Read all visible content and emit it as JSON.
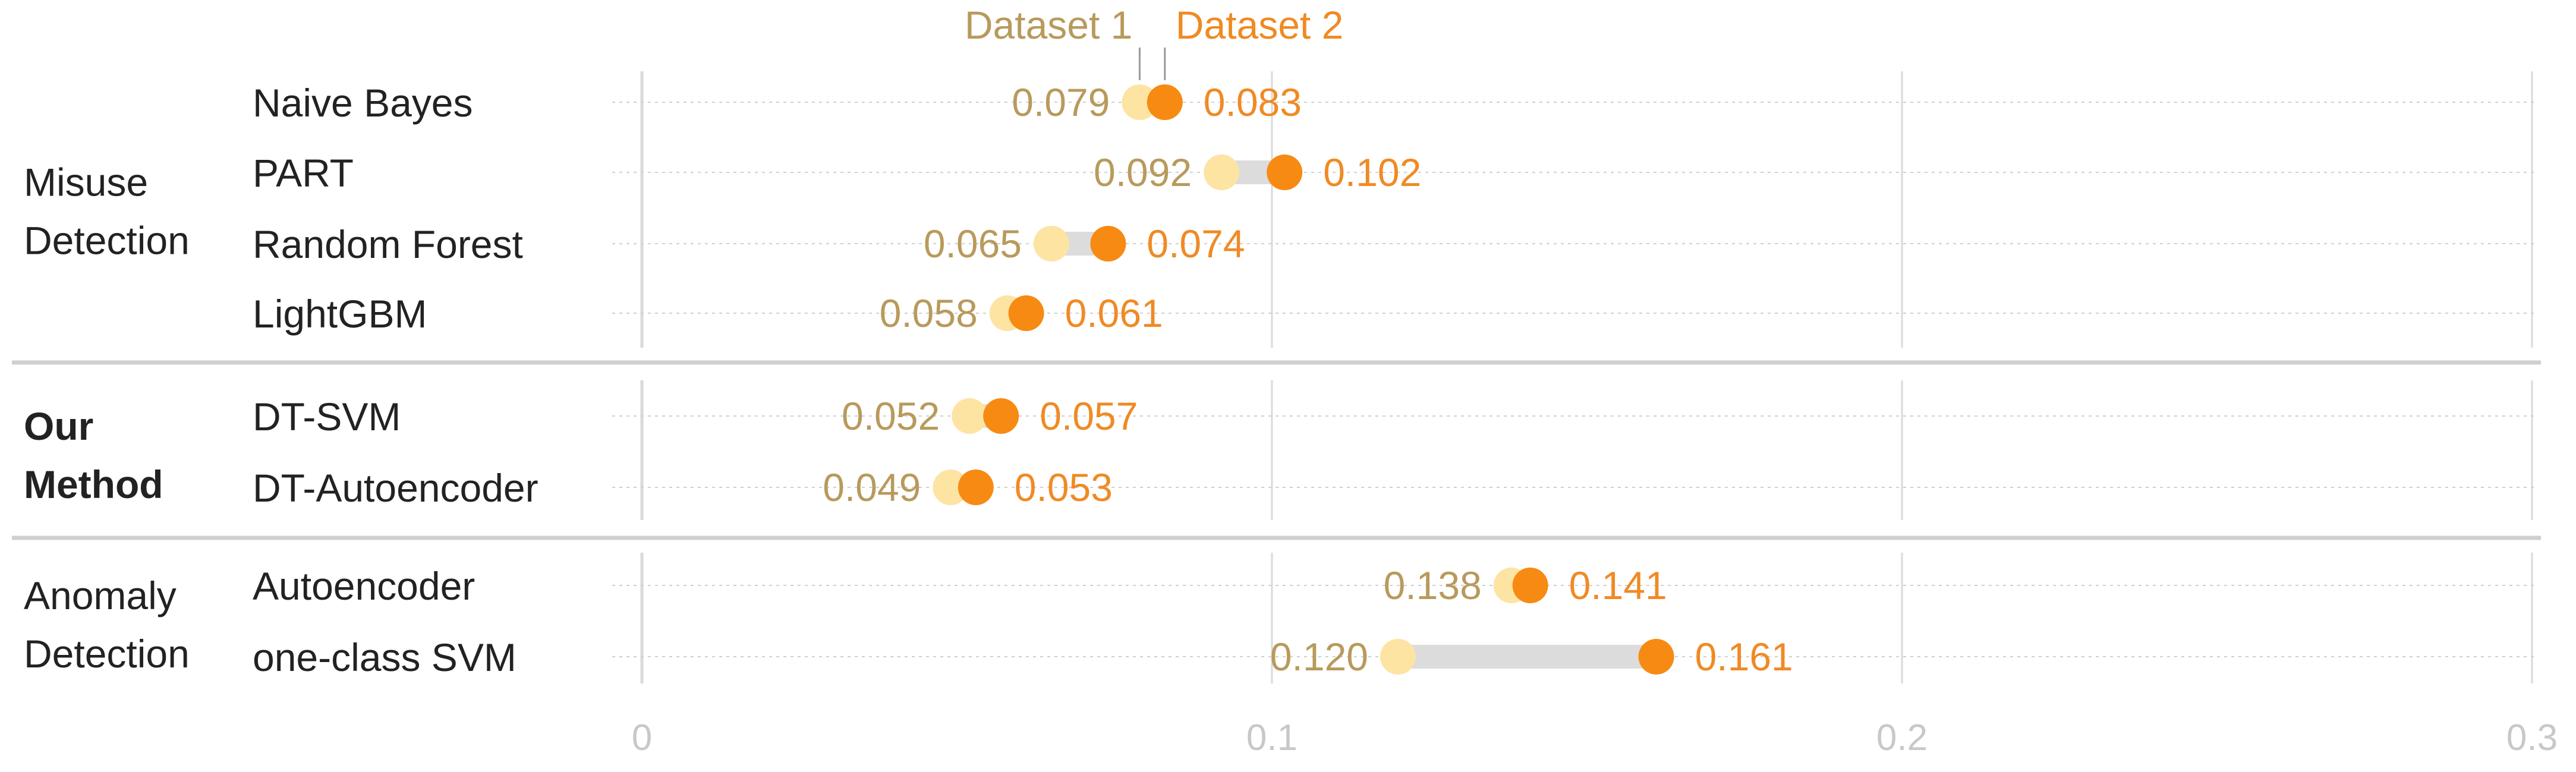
{
  "chart_data": {
    "type": "dumbbell",
    "legend": [
      "Dataset 1",
      "Dataset 2"
    ],
    "xlim": [
      0,
      0.3
    ],
    "xticks": [
      "0",
      "0.1",
      "0.2",
      "0.3"
    ],
    "tick_values": [
      0,
      0.1,
      0.2,
      0.3
    ],
    "groups": [
      {
        "label_lines": [
          "Misuse",
          "Detection"
        ],
        "bold": false,
        "rows": [
          {
            "name": "Naive Bayes",
            "d1": 0.079,
            "d2": 0.083,
            "d1_label": "0.079",
            "d2_label": "0.083"
          },
          {
            "name": "PART",
            "d1": 0.092,
            "d2": 0.102,
            "d1_label": "0.092",
            "d2_label": "0.102"
          },
          {
            "name": "Random Forest",
            "d1": 0.065,
            "d2": 0.074,
            "d1_label": "0.065",
            "d2_label": "0.074"
          },
          {
            "name": "LightGBM",
            "d1": 0.058,
            "d2": 0.061,
            "d1_label": "0.058",
            "d2_label": "0.061"
          }
        ]
      },
      {
        "label_lines": [
          "Our",
          "Method"
        ],
        "bold": true,
        "rows": [
          {
            "name": "DT-SVM",
            "d1": 0.052,
            "d2": 0.057,
            "d1_label": "0.052",
            "d2_label": "0.057"
          },
          {
            "name": "DT-Autoencoder",
            "d1": 0.049,
            "d2": 0.053,
            "d1_label": "0.049",
            "d2_label": "0.053"
          }
        ]
      },
      {
        "label_lines": [
          "Anomaly",
          "Detection"
        ],
        "bold": false,
        "rows": [
          {
            "name": "Autoencoder",
            "d1": 0.138,
            "d2": 0.141,
            "d1_label": "0.138",
            "d2_label": "0.141"
          },
          {
            "name": "one-class SVM",
            "d1": 0.12,
            "d2": 0.161,
            "d1_label": "0.120",
            "d2_label": "0.161"
          }
        ]
      }
    ],
    "colors": {
      "dataset1_dot": "#fde4a3",
      "dataset2_dot": "#f78a12",
      "dataset1_text": "#b89a5c",
      "dataset2_text": "#f08a24",
      "connector": "#dcdcdc",
      "grid": "#d9d9d9",
      "row_guide": "#d0d0d0",
      "separator": "#cfcfcf",
      "axis_tick_text": "#c8c8c8",
      "label_text": "#222222"
    }
  }
}
